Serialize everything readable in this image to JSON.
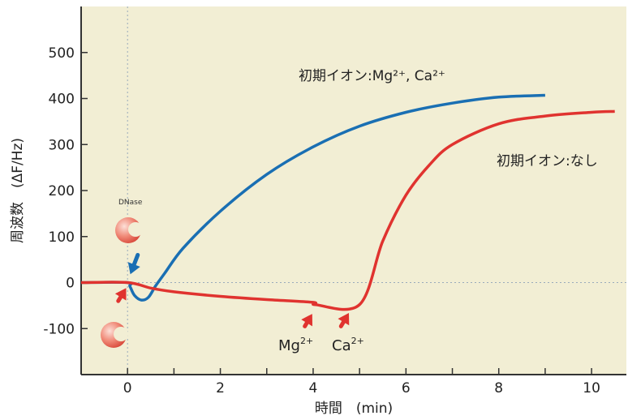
{
  "chart_data": {
    "type": "line",
    "xlabel": "時間　(min)",
    "ylabel": "周波数　(ΔF/Hz)",
    "xlim": [
      -1,
      10.75
    ],
    "ylim": [
      -200,
      600
    ],
    "x_ticks": [
      0,
      2,
      4,
      6,
      8,
      10
    ],
    "y_ticks": [
      -100,
      0,
      100,
      200,
      300,
      400,
      500
    ],
    "grid": false,
    "background": "#f2eed4",
    "series": [
      {
        "label": "初期イオン:Mg²⁺, Ca²⁺",
        "color": "#1a6fb3",
        "points": [
          [
            -1,
            0
          ],
          [
            0,
            0
          ],
          [
            0.05,
            -8
          ],
          [
            0.15,
            -28
          ],
          [
            0.3,
            -38
          ],
          [
            0.45,
            -32
          ],
          [
            0.6,
            -8
          ],
          [
            0.8,
            20
          ],
          [
            1.2,
            75
          ],
          [
            2,
            155
          ],
          [
            3,
            235
          ],
          [
            4,
            295
          ],
          [
            5,
            340
          ],
          [
            6,
            370
          ],
          [
            7,
            390
          ],
          [
            8,
            403
          ],
          [
            9,
            407
          ]
        ]
      },
      {
        "label": "初期イオン:なし",
        "color": "#e0332f",
        "points": [
          [
            -1,
            0
          ],
          [
            0,
            0
          ],
          [
            0.5,
            -12
          ],
          [
            1,
            -20
          ],
          [
            2,
            -30
          ],
          [
            3,
            -37
          ],
          [
            4,
            -43
          ],
          [
            4.05,
            -48
          ],
          [
            5,
            -48
          ],
          [
            5.5,
            90
          ],
          [
            6,
            190
          ],
          [
            6.5,
            255
          ],
          [
            7,
            300
          ],
          [
            8,
            345
          ],
          [
            9,
            362
          ],
          [
            10,
            370
          ],
          [
            10.5,
            372
          ]
        ]
      }
    ],
    "annotations": [
      {
        "label": "DNase",
        "x": 0.05,
        "y": 165
      },
      {
        "label": "Mg",
        "superscript": "2+",
        "x": 3.75,
        "y": -82
      },
      {
        "label": "Ca",
        "superscript": "2+",
        "x": 4.75,
        "y": -82
      }
    ]
  }
}
